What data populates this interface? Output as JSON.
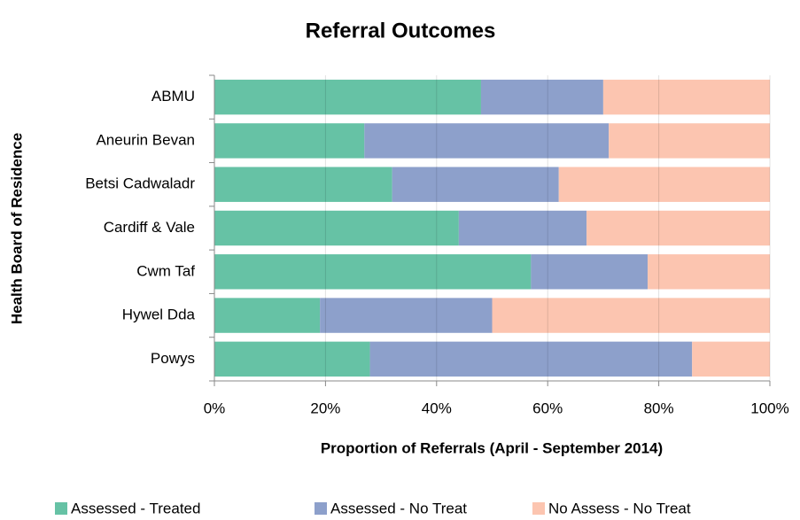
{
  "chart_data": {
    "type": "stacked-barh",
    "title": "Referral Outcomes",
    "x_label": "Proportion of Referrals (April - September 2014)",
    "y_label": "Health Board of Residence",
    "categories": [
      "ABMU",
      "Aneurin Bevan",
      "Betsi Cadwaladr",
      "Cardiff & Vale",
      "Cwm Taf",
      "Hywel Dda",
      "Powys"
    ],
    "series": [
      {
        "name": "Assessed - Treated",
        "color": "#66c2a5",
        "values": [
          48,
          27,
          32,
          44,
          57,
          19,
          28
        ]
      },
      {
        "name": "Assessed - No Treat",
        "color": "#8da0cb",
        "values": [
          22,
          44,
          30,
          23,
          21,
          31,
          58
        ]
      },
      {
        "name": "No Assess - No Treat",
        "color": "#fcc5b0",
        "values": [
          30,
          29,
          38,
          33,
          22,
          50,
          14
        ]
      }
    ],
    "xlim": [
      0,
      100
    ],
    "xticks": [
      {
        "value": 0,
        "label": "0%"
      },
      {
        "value": 20,
        "label": "20%"
      },
      {
        "value": 40,
        "label": "40%"
      },
      {
        "value": 60,
        "label": "60%"
      },
      {
        "value": 80,
        "label": "80%"
      },
      {
        "value": 100,
        "label": "100%"
      }
    ],
    "grid": true,
    "legend": "bottom"
  }
}
